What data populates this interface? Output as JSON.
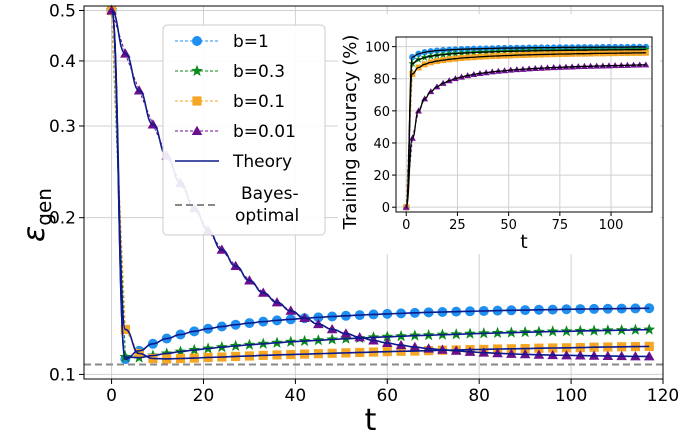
{
  "chart_data": [
    {
      "type": "line",
      "panel": "main",
      "xlabel": "t",
      "ylabel_main": "ε",
      "ylabel_sub": "gen",
      "xlim": [
        -6,
        120
      ],
      "ylim": [
        0.098,
        0.51
      ],
      "y_scale": "log",
      "x_ticks": [
        0,
        20,
        40,
        60,
        80,
        100,
        120
      ],
      "y_ticks": [
        0.1,
        0.2,
        0.3,
        0.4,
        0.5
      ],
      "y_tick_labels": [
        "0.1",
        "0.2",
        "0.3",
        "0.4",
        "0.5"
      ],
      "grid": true,
      "legend_position": "upper-left",
      "legend": [
        "b=1",
        "b=0.3",
        "b=0.1",
        "b=0.01",
        "Theory",
        "Bayes-optimal"
      ],
      "legend_line_2": "optimal",
      "legend_line_1": "Bayes-",
      "bayes_optimal": 0.1045,
      "series": [
        {
          "name": "b=1",
          "color": "#1f8ff0",
          "marker": "circle",
          "x": [
            0,
            3,
            6,
            9,
            12,
            15,
            18,
            21,
            24,
            27,
            30,
            33,
            36,
            39,
            42,
            45,
            48,
            51,
            54,
            57,
            60,
            63,
            66,
            69,
            72,
            75,
            78,
            81,
            84,
            87,
            90,
            93,
            96,
            99,
            102,
            105,
            108,
            111,
            114,
            117
          ],
          "values": [
            0.5,
            0.107,
            0.111,
            0.1145,
            0.1172,
            0.1193,
            0.121,
            0.1224,
            0.1236,
            0.1246,
            0.1255,
            0.1263,
            0.127,
            0.1276,
            0.1282,
            0.1287,
            0.1292,
            0.1296,
            0.13,
            0.1304,
            0.1307,
            0.131,
            0.1313,
            0.1316,
            0.1318,
            0.132,
            0.1322,
            0.1324,
            0.1326,
            0.1328,
            0.1329,
            0.1331,
            0.1332,
            0.1334,
            0.1335,
            0.1336,
            0.1337,
            0.1338,
            0.1339,
            0.134
          ]
        },
        {
          "name": "b=0.3",
          "color": "#0a8a1a",
          "marker": "star",
          "x": [
            0,
            3,
            6,
            9,
            12,
            15,
            18,
            21,
            24,
            27,
            30,
            33,
            36,
            39,
            42,
            45,
            48,
            51,
            54,
            57,
            60,
            63,
            66,
            69,
            72,
            75,
            78,
            81,
            84,
            87,
            90,
            93,
            96,
            99,
            102,
            105,
            108,
            111,
            114,
            117
          ],
          "values": [
            0.5,
            0.108,
            0.1077,
            0.1087,
            0.1097,
            0.1106,
            0.1114,
            0.1121,
            0.1128,
            0.1134,
            0.114,
            0.1145,
            0.115,
            0.1155,
            0.1159,
            0.1163,
            0.1167,
            0.1171,
            0.1174,
            0.1178,
            0.1181,
            0.1184,
            0.1187,
            0.1189,
            0.1192,
            0.1194,
            0.1197,
            0.1199,
            0.1201,
            0.1203,
            0.1205,
            0.1207,
            0.1209,
            0.121,
            0.1212,
            0.1213,
            0.1215,
            0.1216,
            0.1218,
            0.1219
          ]
        },
        {
          "name": "b=0.1",
          "color": "#f5a623",
          "marker": "square",
          "x": [
            0,
            3,
            6,
            9,
            12,
            15,
            18,
            21,
            24,
            27,
            30,
            33,
            36,
            39,
            42,
            45,
            48,
            51,
            54,
            57,
            60,
            63,
            66,
            69,
            72,
            75,
            78,
            81,
            84,
            87,
            90,
            93,
            96,
            99,
            102,
            105,
            108,
            111,
            114,
            117
          ],
          "values": [
            0.5,
            0.122,
            0.1097,
            0.1073,
            0.1071,
            0.1073,
            0.1075,
            0.1078,
            0.108,
            0.1083,
            0.1085,
            0.1088,
            0.109,
            0.1092,
            0.1094,
            0.1096,
            0.1098,
            0.11,
            0.1102,
            0.1104,
            0.1106,
            0.1108,
            0.1109,
            0.1111,
            0.1113,
            0.1114,
            0.1116,
            0.1117,
            0.1119,
            0.112,
            0.1121,
            0.1123,
            0.1124,
            0.1125,
            0.1126,
            0.1128,
            0.1129,
            0.113,
            0.1131,
            0.1132
          ]
        },
        {
          "name": "b=0.01",
          "color": "#6a0f8e",
          "marker": "triangle",
          "x": [
            0,
            3,
            6,
            9,
            12,
            15,
            18,
            21,
            24,
            27,
            30,
            33,
            36,
            39,
            42,
            45,
            48,
            51,
            54,
            57,
            60,
            63,
            66,
            69,
            72,
            75,
            78,
            81,
            84,
            87,
            90,
            93,
            96,
            99,
            102,
            105,
            108,
            111,
            114,
            117
          ],
          "values": [
            0.5,
            0.413,
            0.351,
            0.302,
            0.263,
            0.233,
            0.2085,
            0.189,
            0.1735,
            0.1615,
            0.1515,
            0.1435,
            0.1375,
            0.1325,
            0.1283,
            0.1249,
            0.1221,
            0.1198,
            0.1178,
            0.1162,
            0.1149,
            0.1138,
            0.1129,
            0.1121,
            0.1115,
            0.111,
            0.1105,
            0.1101,
            0.1098,
            0.1095,
            0.1093,
            0.1091,
            0.1089,
            0.1088,
            0.1087,
            0.1086,
            0.1085,
            0.1084,
            0.1083,
            0.1083
          ]
        }
      ]
    },
    {
      "type": "line",
      "panel": "inset",
      "xlabel": "t",
      "ylabel": "Training accuracy (%)",
      "xlim": [
        -5,
        120
      ],
      "ylim": [
        -3,
        106
      ],
      "x_ticks": [
        0,
        25,
        50,
        75,
        100
      ],
      "y_ticks": [
        0,
        20,
        40,
        60,
        80,
        100
      ],
      "grid": true,
      "series": [
        {
          "name": "b=1",
          "color": "#1f8ff0",
          "marker": "circle",
          "x": [
            0,
            3,
            6,
            9,
            12,
            15,
            18,
            21,
            24,
            27,
            30,
            33,
            36,
            39,
            42,
            45,
            48,
            51,
            54,
            57,
            60,
            63,
            66,
            69,
            72,
            75,
            78,
            81,
            84,
            87,
            90,
            93,
            96,
            99,
            102,
            105,
            108,
            111,
            114,
            117
          ],
          "values": [
            0,
            93.5,
            95.5,
            96.5,
            97.1,
            97.5,
            97.8,
            98.0,
            98.2,
            98.4,
            98.5,
            98.6,
            98.7,
            98.8,
            98.9,
            99.0,
            99.1,
            99.1,
            99.2,
            99.2,
            99.3,
            99.3,
            99.4,
            99.4,
            99.4,
            99.5,
            99.5,
            99.5,
            99.6,
            99.6,
            99.6,
            99.6,
            99.7,
            99.7,
            99.7,
            99.7,
            99.7,
            99.8,
            99.8,
            99.8
          ]
        },
        {
          "name": "b=0.3",
          "color": "#0a8a1a",
          "marker": "star",
          "x": [
            0,
            3,
            6,
            9,
            12,
            15,
            18,
            21,
            24,
            27,
            30,
            33,
            36,
            39,
            42,
            45,
            48,
            51,
            54,
            57,
            60,
            63,
            66,
            69,
            72,
            75,
            78,
            81,
            84,
            87,
            90,
            93,
            96,
            99,
            102,
            105,
            108,
            111,
            114,
            117
          ],
          "values": [
            0,
            89.5,
            92.0,
            93.2,
            94.0,
            94.6,
            95.0,
            95.4,
            95.7,
            95.9,
            96.1,
            96.3,
            96.5,
            96.6,
            96.7,
            96.9,
            97.0,
            97.1,
            97.2,
            97.2,
            97.3,
            97.4,
            97.5,
            97.5,
            97.6,
            97.6,
            97.7,
            97.7,
            97.8,
            97.8,
            97.9,
            97.9,
            97.9,
            98.0,
            98.0,
            98.0,
            98.1,
            98.1,
            98.1,
            98.2
          ]
        },
        {
          "name": "b=0.1",
          "color": "#f5a623",
          "marker": "square",
          "x": [
            0,
            3,
            6,
            9,
            12,
            15,
            18,
            21,
            24,
            27,
            30,
            33,
            36,
            39,
            42,
            45,
            48,
            51,
            54,
            57,
            60,
            63,
            66,
            69,
            72,
            75,
            78,
            81,
            84,
            87,
            90,
            93,
            96,
            99,
            102,
            105,
            108,
            111,
            114,
            117
          ],
          "values": [
            0,
            83.0,
            87.0,
            89.0,
            90.2,
            91.0,
            91.6,
            92.1,
            92.5,
            92.9,
            93.2,
            93.4,
            93.7,
            93.9,
            94.1,
            94.2,
            94.4,
            94.5,
            94.7,
            94.8,
            94.9,
            95.0,
            95.1,
            95.2,
            95.3,
            95.4,
            95.4,
            95.5,
            95.6,
            95.6,
            95.7,
            95.8,
            95.8,
            95.9,
            95.9,
            96.0,
            96.0,
            96.1,
            96.1,
            96.2
          ]
        },
        {
          "name": "b=0.01",
          "color": "#6a0f8e",
          "marker": "triangle",
          "x": [
            0,
            3,
            6,
            9,
            12,
            15,
            18,
            21,
            24,
            27,
            30,
            33,
            36,
            39,
            42,
            45,
            48,
            51,
            54,
            57,
            60,
            63,
            66,
            69,
            72,
            75,
            78,
            81,
            84,
            87,
            90,
            93,
            96,
            99,
            102,
            105,
            108,
            111,
            114,
            117
          ],
          "values": [
            0,
            43.0,
            60.0,
            67.5,
            72.0,
            75.0,
            77.2,
            78.8,
            80.1,
            81.1,
            82.0,
            82.7,
            83.3,
            83.8,
            84.3,
            84.7,
            85.0,
            85.4,
            85.7,
            85.9,
            86.2,
            86.4,
            86.6,
            86.8,
            87.0,
            87.1,
            87.3,
            87.4,
            87.6,
            87.7,
            87.8,
            87.9,
            88.0,
            88.1,
            88.2,
            88.3,
            88.4,
            88.5,
            88.6,
            88.7
          ]
        }
      ]
    }
  ]
}
